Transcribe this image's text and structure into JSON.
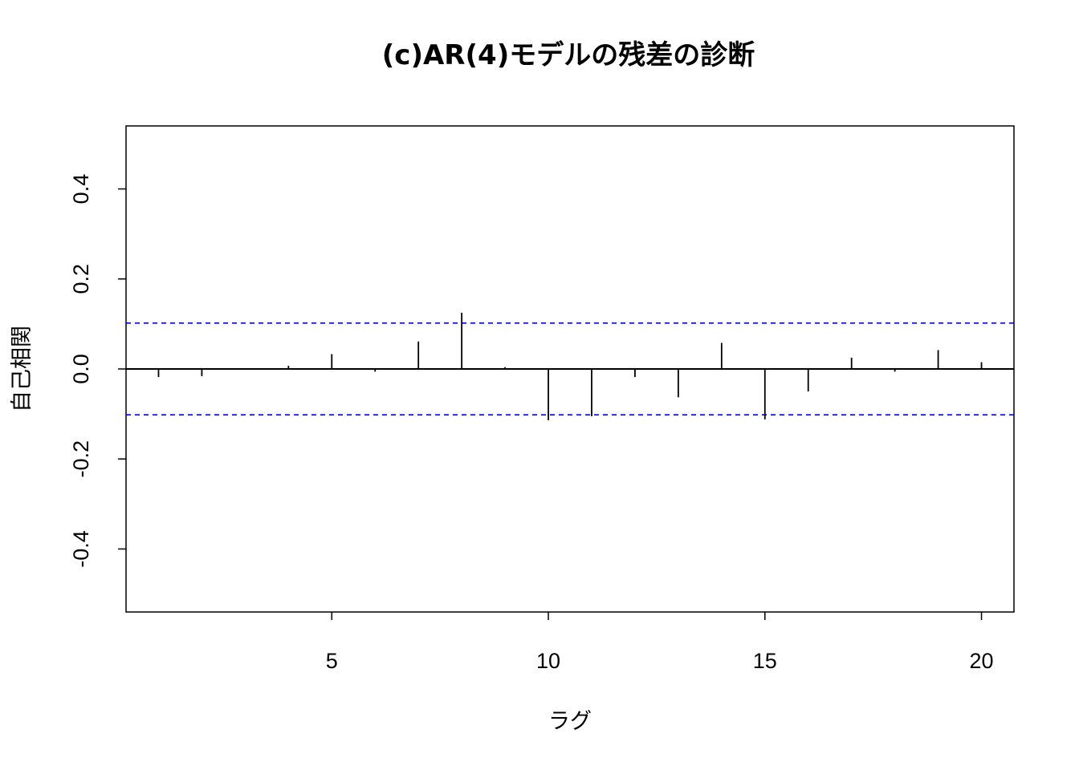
{
  "chart_data": {
    "type": "bar",
    "title": "(c)AR(4)モデルの残差の診断",
    "xlabel": "ラグ",
    "ylabel": "自己相関",
    "x": [
      1,
      2,
      3,
      4,
      5,
      6,
      7,
      8,
      9,
      10,
      11,
      12,
      13,
      14,
      15,
      16,
      17,
      18,
      19,
      20
    ],
    "values": [
      -0.018,
      -0.016,
      0.0,
      0.007,
      0.033,
      -0.006,
      0.061,
      0.125,
      0.004,
      -0.114,
      -0.105,
      -0.018,
      -0.063,
      0.058,
      -0.112,
      -0.05,
      0.025,
      -0.006,
      0.042,
      0.015
    ],
    "xlim": [
      0.25,
      20.75
    ],
    "ylim": [
      -0.54,
      0.54
    ],
    "xticks": [
      5,
      10,
      15,
      20
    ],
    "xtick_labels": [
      "5",
      "10",
      "15",
      "20"
    ],
    "yticks": [
      -0.4,
      -0.2,
      0.0,
      0.2,
      0.4
    ],
    "ytick_labels": [
      "-0.4",
      "-0.2",
      "0.0",
      "0.2",
      "0.4"
    ],
    "confidence_band": [
      0.102,
      -0.102
    ],
    "colors": {
      "bars": "#000000",
      "confidence_band": "#0000ff",
      "zero_line": "#000000"
    },
    "grid": false
  }
}
